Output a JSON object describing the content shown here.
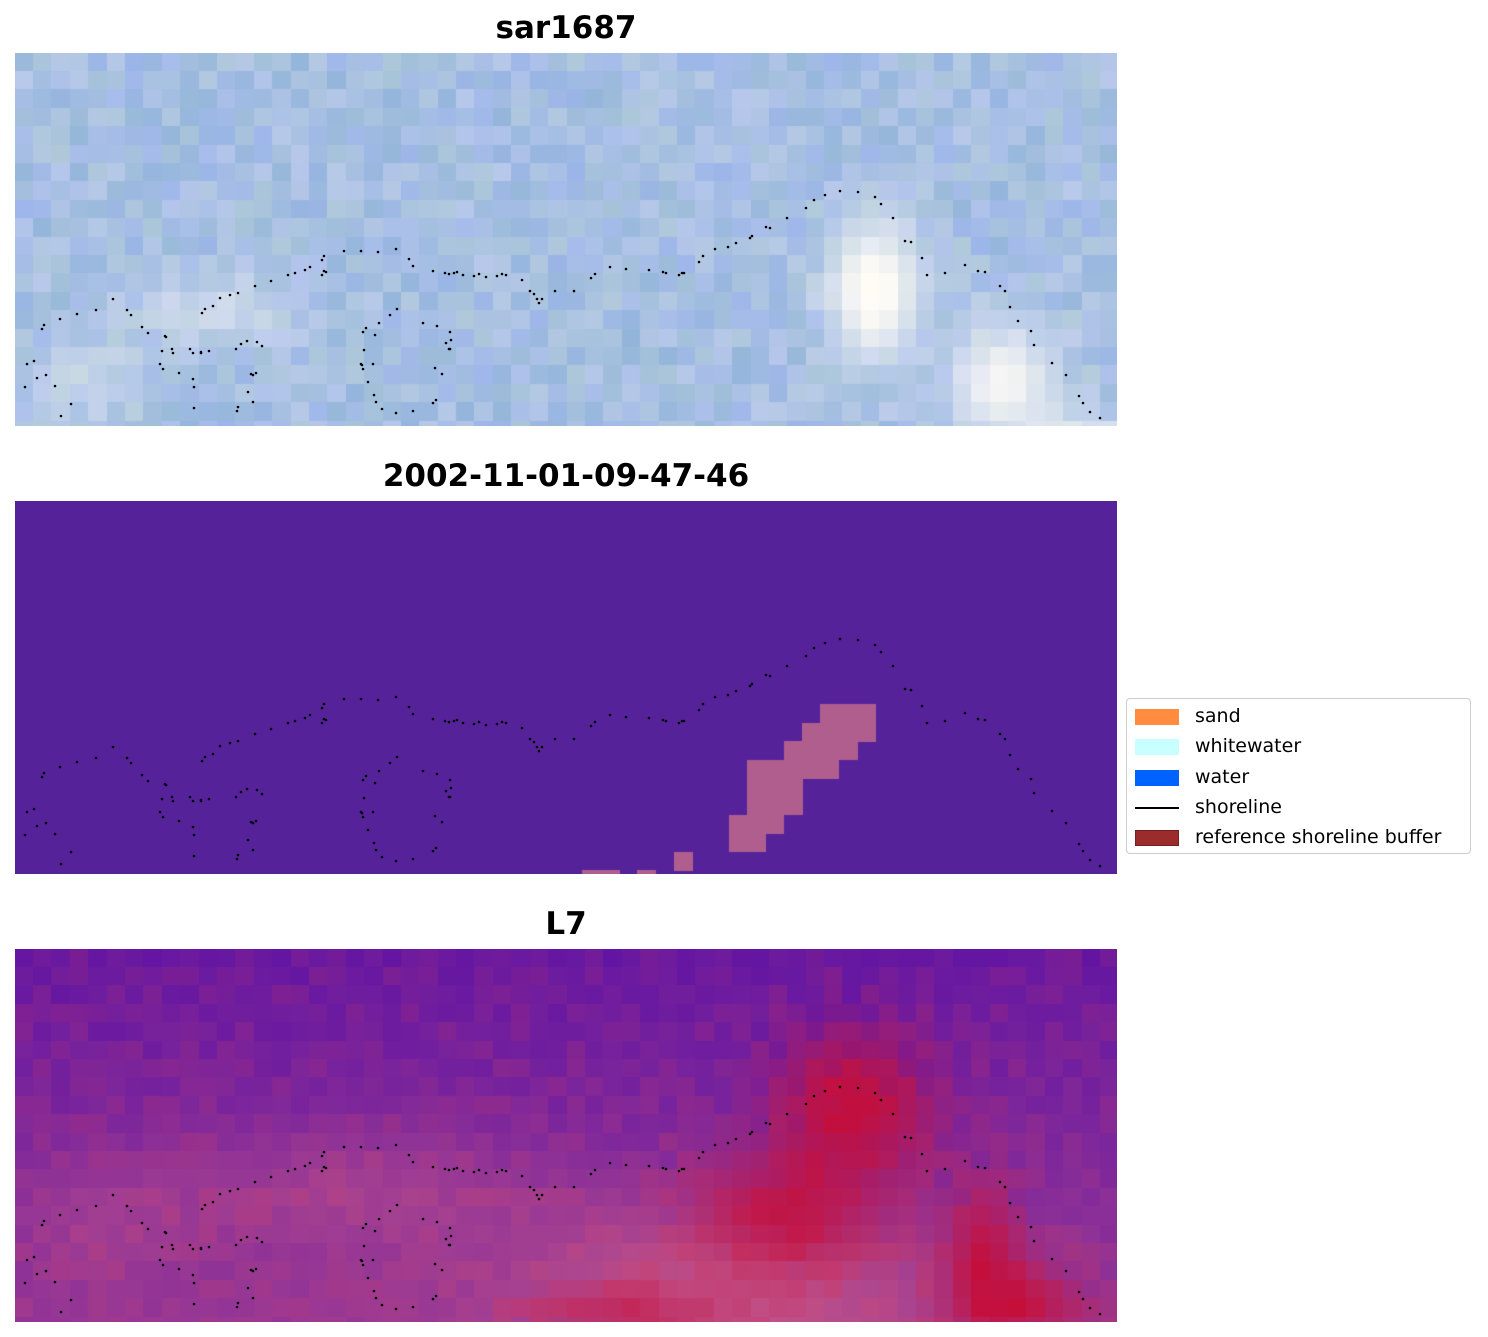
{
  "panels": [
    {
      "id": "rgb",
      "title": "sar1687"
    },
    {
      "id": "class",
      "title": "2002-11-01-09-47-46"
    },
    {
      "id": "index",
      "title": "L7"
    }
  ],
  "legend": {
    "items": [
      {
        "label": "sand",
        "color": "#ff8c3f",
        "kind": "patch"
      },
      {
        "label": "whitewater",
        "color": "#c8ffff",
        "kind": "patch"
      },
      {
        "label": "water",
        "color": "#0062ff",
        "kind": "patch"
      },
      {
        "label": "shoreline",
        "color": "#000000",
        "kind": "line"
      },
      {
        "label": "reference shoreline buffer",
        "color": "#9b2c2c",
        "kind": "patch"
      }
    ]
  },
  "colors": {
    "rgb_base": "#a6bfe2",
    "class_background": "#55229a",
    "class_buffer_overlay": "#b05e8e",
    "index_low": "#6a1aa0",
    "index_mid": "#c0528a",
    "index_high": "#c40f3c"
  }
}
